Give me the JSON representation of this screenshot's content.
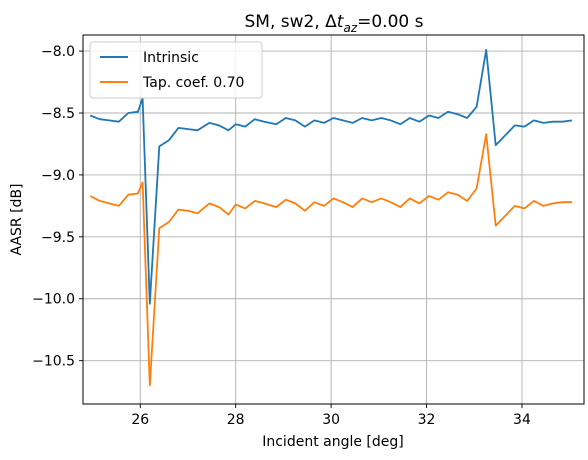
{
  "chart_data": {
    "type": "line",
    "title": {
      "prefix": "SM, sw2, Δ",
      "sym": "t",
      "sub": "az",
      "suffix": "=0.00 s"
    },
    "xlabel": "Incident angle [deg]",
    "ylabel": "AASR [dB]",
    "xlim": [
      24.8,
      35.3
    ],
    "ylim": [
      -10.85,
      -7.87
    ],
    "x_ticks": [
      26,
      28,
      30,
      32,
      34
    ],
    "y_ticks": [
      -10.5,
      -10.0,
      -9.5,
      -9.0,
      -8.5,
      -8.0
    ],
    "y_tick_labels": [
      "−10.5",
      "−10.0",
      "−9.5",
      "−9.0",
      "−8.5",
      "−8.0"
    ],
    "grid": true,
    "legend_position": "top-left",
    "x": [
      24.95,
      25.15,
      25.35,
      25.55,
      25.75,
      25.95,
      26.05,
      26.2,
      26.4,
      26.6,
      26.8,
      27.0,
      27.2,
      27.45,
      27.65,
      27.85,
      28.0,
      28.2,
      28.4,
      28.6,
      28.85,
      29.05,
      29.25,
      29.45,
      29.65,
      29.85,
      30.05,
      30.25,
      30.45,
      30.65,
      30.85,
      31.05,
      31.25,
      31.45,
      31.65,
      31.85,
      32.05,
      32.25,
      32.45,
      32.65,
      32.85,
      33.05,
      33.25,
      33.45,
      33.65,
      33.85,
      34.05,
      34.25,
      34.45,
      34.65,
      34.85,
      35.05
    ],
    "series": [
      {
        "name": "Intrinsic",
        "color": "#1f77b4",
        "values": [
          -8.52,
          -8.55,
          -8.56,
          -8.57,
          -8.5,
          -8.49,
          -8.38,
          -10.04,
          -8.77,
          -8.72,
          -8.62,
          -8.63,
          -8.64,
          -8.58,
          -8.6,
          -8.64,
          -8.59,
          -8.61,
          -8.55,
          -8.57,
          -8.59,
          -8.54,
          -8.56,
          -8.61,
          -8.56,
          -8.58,
          -8.54,
          -8.56,
          -8.58,
          -8.54,
          -8.56,
          -8.54,
          -8.56,
          -8.59,
          -8.54,
          -8.57,
          -8.52,
          -8.54,
          -8.49,
          -8.51,
          -8.54,
          -8.45,
          -7.99,
          -8.76,
          -8.68,
          -8.6,
          -8.61,
          -8.56,
          -8.58,
          -8.57,
          -8.57,
          -8.56
        ]
      },
      {
        "name": "Tap. coef. 0.70",
        "color": "#ff7f0e",
        "values": [
          -9.17,
          -9.21,
          -9.23,
          -9.25,
          -9.16,
          -9.15,
          -9.06,
          -10.7,
          -9.43,
          -9.38,
          -9.28,
          -9.29,
          -9.31,
          -9.23,
          -9.26,
          -9.32,
          -9.24,
          -9.27,
          -9.21,
          -9.23,
          -9.26,
          -9.2,
          -9.23,
          -9.29,
          -9.22,
          -9.25,
          -9.19,
          -9.22,
          -9.26,
          -9.19,
          -9.22,
          -9.19,
          -9.22,
          -9.26,
          -9.19,
          -9.23,
          -9.17,
          -9.2,
          -9.14,
          -9.16,
          -9.21,
          -9.11,
          -8.67,
          -9.41,
          -9.33,
          -9.25,
          -9.27,
          -9.21,
          -9.25,
          -9.23,
          -9.22,
          -9.22
        ]
      }
    ]
  }
}
